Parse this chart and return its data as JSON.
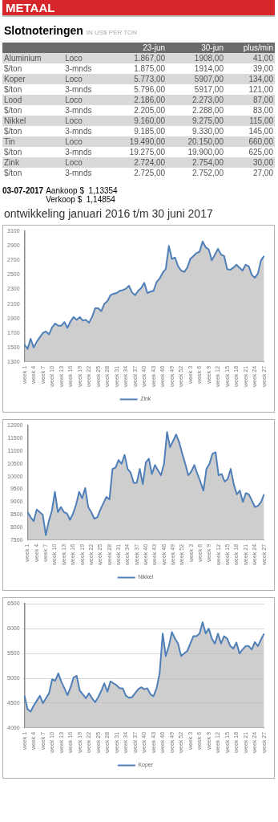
{
  "chart_data": [
    {
      "type": "other",
      "title": "METAAL",
      "subtitle": "Slotnoteringen",
      "categories": [
        null,
        null,
        "23-jun",
        "30-jun",
        "plus/min"
      ],
      "annotations": [
        "IN US$ PER TON",
        "Aluminium",
        "Loco",
        "1.867,00",
        "1908,00",
        "41,00",
        "$/ton",
        "3-mnds",
        "1.875,00",
        "1914,00",
        "39,00",
        "Koper",
        "Loco",
        "5.773,00",
        "5907,00",
        "134,00",
        "$/ton",
        "3-mnds",
        "5.796,00",
        "5917,00",
        "121,00",
        "Lood",
        "Loco",
        "2.186,00",
        "2.273,00",
        "87,00",
        "$/ton",
        "3-mnds",
        "2.205,00",
        "2.288,00",
        "83,00",
        "Nikkel",
        "Loco",
        "9.160,00",
        "9.275,00",
        "115,00",
        "$/ton",
        "3-mnds",
        "9.185,00",
        "9.330,00",
        "145,00",
        "Tin",
        "Loco",
        "19.490,00",
        "20.150,00",
        "660,00",
        "$/ton",
        "3-mnds",
        "19.275,00",
        "19.900,00",
        "625,00",
        "Zink",
        "Loco",
        "2.724,00",
        "2.754,00",
        "30,00",
        "$/ton",
        "3-mnds",
        "2.725,00",
        "2.752,00",
        "27,00",
        "03-07-2017",
        "Aankoop $  1,13354",
        "Verkoop $  1,14854"
      ]
    },
    {
      "type": "area",
      "title": "ontwikkeling januari 2016 t/m 30 juni 2017",
      "legend": "bottom",
      "ylim": [
        1300,
        3100
      ],
      "yticks": [
        1300,
        1500,
        1700,
        1900,
        2100,
        2300,
        2500,
        2700,
        2900,
        3100
      ],
      "categories": [
        "week 1",
        null,
        null,
        "week 4",
        null,
        null,
        "week 7",
        null,
        null,
        "week 10",
        null,
        null,
        "week 13",
        null,
        null,
        "week 16",
        null,
        null,
        "week 19",
        null,
        null,
        "week 22",
        null,
        null,
        "week 25",
        null,
        null,
        "week 28",
        null,
        null,
        "week 31",
        null,
        null,
        "week 34",
        null,
        null,
        "week 37",
        null,
        null,
        "week 40",
        null,
        null,
        "week 43",
        null,
        null,
        "week 46",
        null,
        null,
        "week 49",
        null,
        null,
        "week 52",
        null,
        null,
        "week 3",
        null,
        null,
        "week 6",
        null,
        null,
        "week 9",
        null,
        null,
        "week 12",
        null,
        null,
        "week 15",
        null,
        null,
        "week 18",
        null,
        null,
        "week 21",
        null,
        null,
        "week 24",
        null,
        null,
        "week 27"
      ],
      "series": [
        {
          "name": "Zink",
          "color": "#4f7fb8",
          "values": [
            1540,
            1480,
            1620,
            1500,
            1580,
            1640,
            1700,
            1720,
            1680,
            1780,
            1830,
            1800,
            1800,
            1850,
            1770,
            1860,
            1920,
            1880,
            1920,
            1870,
            1880,
            1840,
            1920,
            2040,
            2040,
            2000,
            2100,
            2140,
            2220,
            2240,
            2250,
            2280,
            2290,
            2310,
            2350,
            2260,
            2220,
            2280,
            2320,
            2390,
            2250,
            2270,
            2280,
            2400,
            2450,
            2530,
            2580,
            2900,
            2720,
            2740,
            2620,
            2560,
            2540,
            2600,
            2720,
            2760,
            2800,
            2820,
            2960,
            2880,
            2850,
            2700,
            2780,
            2860,
            2780,
            2760,
            2580,
            2570,
            2600,
            2640,
            2600,
            2560,
            2640,
            2620,
            2500,
            2460,
            2520,
            2700,
            2760
          ]
        }
      ]
    },
    {
      "type": "area",
      "legend": "bottom",
      "ylim": [
        7500,
        12000
      ],
      "yticks": [
        7500,
        8000,
        8500,
        9000,
        9500,
        10000,
        10500,
        11000,
        11500,
        12000
      ],
      "categories": [
        "week 1",
        null,
        null,
        "week 4",
        null,
        null,
        "week 7",
        null,
        null,
        "week 10",
        null,
        null,
        "week 13",
        null,
        null,
        "week 16",
        null,
        null,
        "week 19",
        null,
        null,
        "week 22",
        null,
        null,
        "week 25",
        null,
        null,
        "week 28",
        null,
        null,
        "week 31",
        null,
        null,
        "week 34",
        null,
        null,
        "week 37",
        null,
        null,
        "week 40",
        null,
        null,
        "week 43",
        null,
        null,
        "week 46",
        null,
        null,
        "week 49",
        null,
        null,
        "week 52",
        null,
        null,
        "week 3",
        null,
        null,
        "week 6",
        null,
        null,
        "week 9",
        null,
        null,
        "week 12",
        null,
        null,
        "week 15",
        null,
        null,
        "week 18",
        null,
        null,
        "week 21",
        null,
        null,
        "week 24",
        null,
        null,
        "week 27"
      ],
      "series": [
        {
          "name": "Nikkel",
          "color": "#4f7fb8",
          "values": [
            8600,
            8400,
            8250,
            8700,
            8600,
            8500,
            7700,
            8250,
            8650,
            9400,
            8600,
            8800,
            8600,
            8550,
            8300,
            8550,
            8900,
            9400,
            9150,
            9550,
            8800,
            8600,
            8350,
            8400,
            8700,
            8950,
            9200,
            9100,
            10300,
            10350,
            10650,
            10500,
            10850,
            10300,
            10150,
            9750,
            9750,
            10300,
            9700,
            10550,
            10700,
            10100,
            10450,
            10250,
            10050,
            10500,
            11750,
            11150,
            11400,
            11650,
            11350,
            10900,
            10500,
            10050,
            10200,
            10450,
            10100,
            9800,
            9450,
            10300,
            10500,
            10900,
            10950,
            10050,
            10100,
            9800,
            9900,
            10300,
            9700,
            9300,
            9450,
            9000,
            9350,
            9300,
            9050,
            8800,
            8850,
            9000,
            9300
          ]
        }
      ]
    },
    {
      "type": "area",
      "legend": "bottom",
      "grid": "y",
      "ylim": [
        4000,
        6500
      ],
      "yticks": [
        4000,
        4500,
        5000,
        5500,
        6000,
        6500
      ],
      "categories": [
        "week 1",
        null,
        null,
        "week 4",
        null,
        null,
        "week 7",
        null,
        null,
        "week 10",
        null,
        null,
        "week 13",
        null,
        null,
        "week 16",
        null,
        null,
        "week 19",
        null,
        null,
        "week 22",
        null,
        null,
        "week 25",
        null,
        null,
        "week 28",
        null,
        null,
        "week 31",
        null,
        null,
        "week 34",
        null,
        null,
        "week 37",
        null,
        null,
        "week 40",
        null,
        null,
        "week 43",
        null,
        null,
        "week 46",
        null,
        null,
        "week 49",
        null,
        null,
        "week 52",
        null,
        null,
        "week 3",
        null,
        null,
        "week 6",
        null,
        null,
        "week 9",
        null,
        null,
        "week 12",
        null,
        null,
        "week 15",
        null,
        null,
        "week 18",
        null,
        null,
        "week 21",
        null,
        null,
        "week 24",
        null,
        null,
        "week 27"
      ],
      "series": [
        {
          "name": "Koper",
          "color": "#4f7fb8",
          "values": [
            4650,
            4380,
            4330,
            4450,
            4550,
            4650,
            4500,
            4600,
            4700,
            4980,
            4950,
            5100,
            4930,
            4800,
            4660,
            4820,
            5020,
            5050,
            4750,
            4680,
            4600,
            4700,
            4600,
            4520,
            4620,
            4750,
            4900,
            4730,
            4940,
            4900,
            4860,
            4800,
            4800,
            4650,
            4610,
            4620,
            4700,
            4780,
            4820,
            4780,
            4800,
            4680,
            4640,
            4800,
            5100,
            5900,
            5450,
            5650,
            5930,
            5800,
            5700,
            5450,
            5500,
            5550,
            5700,
            5850,
            5850,
            5900,
            6130,
            5900,
            6000,
            5800,
            5700,
            5900,
            5700,
            5850,
            5800,
            5650,
            5600,
            5720,
            5500,
            5580,
            5650,
            5650,
            5580,
            5730,
            5650,
            5780,
            5900
          ]
        }
      ]
    }
  ]
}
